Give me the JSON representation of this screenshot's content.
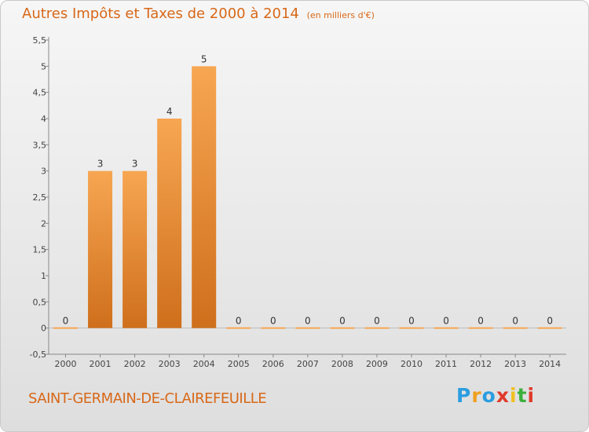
{
  "title": "Autres Impôts et Taxes de 2000 à 2014",
  "subtitle": "(en milliers d'€)",
  "commune": "SAINT-GERMAIN-DE-CLAIREFEUILLE",
  "logo": {
    "letters": [
      "P",
      "r",
      "o",
      "x",
      "i",
      "t",
      "i"
    ],
    "colors": [
      "#2a9de0",
      "#f0a020",
      "#2a9de0",
      "#e03a2a",
      "#f0c020",
      "#3bb03b",
      "#e03a2a"
    ]
  },
  "colors": {
    "bar_top": "#f7a652",
    "bar_bottom": "#cf6f1c",
    "accent": "#d86818"
  },
  "chart_data": {
    "type": "bar",
    "categories": [
      "2000",
      "2001",
      "2002",
      "2003",
      "2004",
      "2005",
      "2006",
      "2007",
      "2008",
      "2009",
      "2010",
      "2011",
      "2012",
      "2013",
      "2014"
    ],
    "values": [
      0,
      3,
      3,
      4,
      5,
      0,
      0,
      0,
      0,
      0,
      0,
      0,
      0,
      0,
      0
    ],
    "data_labels": [
      "0",
      "3",
      "3",
      "4",
      "5",
      "0",
      "0",
      "0",
      "0",
      "0",
      "0",
      "0",
      "0",
      "0",
      "0"
    ],
    "yticks": [
      "-0,5",
      "0",
      "0,5",
      "1",
      "1,5",
      "2",
      "2,5",
      "3",
      "3,5",
      "4",
      "4,5",
      "5",
      "5,5"
    ],
    "ylim": [
      -0.5,
      5.5
    ],
    "grid": false,
    "legend": "none"
  }
}
